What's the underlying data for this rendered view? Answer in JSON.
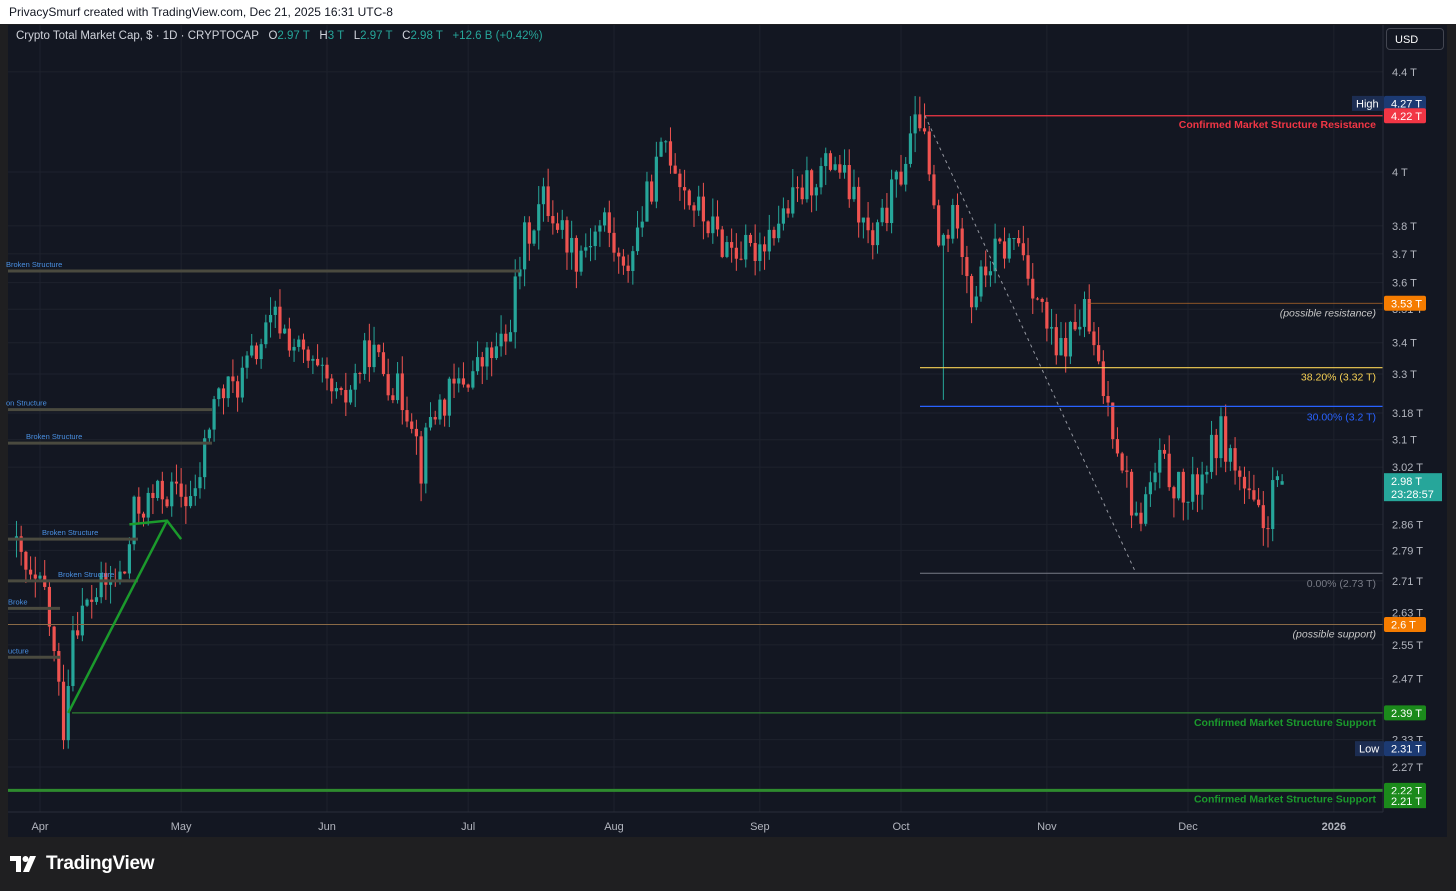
{
  "header": {
    "text": "PrivacySmurf created with TradingView.com, Dec 21, 2025 16:31 UTC-8"
  },
  "legend": {
    "symbol": "Crypto Total Market Cap, $ · 1D · CRYPTOCAP",
    "o_label": "O",
    "o_value": "2.97 T",
    "h_label": "H",
    "h_value": "3 T",
    "l_label": "L",
    "l_value": "2.97 T",
    "c_label": "C",
    "c_value": "2.98 T",
    "change": "+12.6 B (+0.42%)"
  },
  "currency_button": "USD",
  "brand": "TradingView",
  "colors": {
    "background": "#131722",
    "up": "#26a69a",
    "down": "#ef5350",
    "grid": "#1e222d",
    "resistance": "#f23645",
    "support": "#089981",
    "fib_38": "#f7d154",
    "fib_30": "#2962ff",
    "possible": "#f57c00",
    "info": "#1c3a73"
  },
  "chart_data": {
    "type": "candlestick",
    "title": "Crypto Total Market Cap, $ · 1D · CRYPTOCAP",
    "xlabel": "",
    "ylabel": "",
    "y_unit": "T (trillion USD)",
    "y_scale": "log",
    "ylim": [
      2.17,
      4.6
    ],
    "x_tick_labels": [
      "Apr",
      "May",
      "Jun",
      "Jul",
      "Aug",
      "Sep",
      "Oct",
      "Nov",
      "Dec",
      "2026"
    ],
    "y_tick_labels": [
      "4.4 T",
      "4 T",
      "3.8 T",
      "3.7 T",
      "3.6 T",
      "3.51 T",
      "3.4 T",
      "3.3 T",
      "3.18 T",
      "3.1 T",
      "3.02 T",
      "2.86 T",
      "2.79 T",
      "2.71 T",
      "2.63 T",
      "2.55 T",
      "2.47 T",
      "2.33 T",
      "2.27 T"
    ],
    "y_tick_values": [
      4.4,
      4.0,
      3.8,
      3.7,
      3.6,
      3.51,
      3.4,
      3.3,
      3.18,
      3.1,
      3.02,
      2.86,
      2.79,
      2.71,
      2.63,
      2.55,
      2.47,
      2.33,
      2.27
    ],
    "grid": true,
    "ohlc_last": {
      "open": 2.97,
      "high": 3.0,
      "low": 2.97,
      "close": 2.98,
      "change": "+12.6 B (+0.42%)"
    },
    "close_path": [
      [
        "2025-03-27",
        2.82
      ],
      [
        "2025-03-31",
        2.7
      ],
      [
        "2025-04-03",
        2.68
      ],
      [
        "2025-04-07",
        2.36
      ],
      [
        "2025-04-09",
        2.6
      ],
      [
        "2025-04-14",
        2.68
      ],
      [
        "2025-04-20",
        2.73
      ],
      [
        "2025-04-22",
        2.89
      ],
      [
        "2025-04-28",
        2.95
      ],
      [
        "2025-05-05",
        2.93
      ],
      [
        "2025-05-09",
        3.22
      ],
      [
        "2025-05-14",
        3.27
      ],
      [
        "2025-05-22",
        3.48
      ],
      [
        "2025-05-28",
        3.35
      ],
      [
        "2025-06-05",
        3.2
      ],
      [
        "2025-06-11",
        3.38
      ],
      [
        "2025-06-20",
        3.18
      ],
      [
        "2025-06-22",
        3.02
      ],
      [
        "2025-06-24",
        3.17
      ],
      [
        "2025-07-01",
        3.28
      ],
      [
        "2025-07-10",
        3.4
      ],
      [
        "2025-07-14",
        3.75
      ],
      [
        "2025-07-18",
        3.9
      ],
      [
        "2025-07-25",
        3.7
      ],
      [
        "2025-07-31",
        3.82
      ],
      [
        "2025-08-04",
        3.62
      ],
      [
        "2025-08-13",
        4.12
      ],
      [
        "2025-08-18",
        3.9
      ],
      [
        "2025-08-25",
        3.74
      ],
      [
        "2025-08-31",
        3.7
      ],
      [
        "2025-09-05",
        3.8
      ],
      [
        "2025-09-13",
        3.97
      ],
      [
        "2025-09-18",
        4.05
      ],
      [
        "2025-09-26",
        3.72
      ],
      [
        "2025-10-02",
        4.0
      ],
      [
        "2025-10-06",
        4.22
      ],
      [
        "2025-10-10",
        3.72
      ],
      [
        "2025-10-14",
        3.85
      ],
      [
        "2025-10-17",
        3.55
      ],
      [
        "2025-10-22",
        3.7
      ],
      [
        "2025-10-27",
        3.75
      ],
      [
        "2025-11-04",
        3.35
      ],
      [
        "2025-11-10",
        3.5
      ],
      [
        "2025-11-13",
        3.3
      ],
      [
        "2025-11-17",
        3.1
      ],
      [
        "2025-11-21",
        2.86
      ],
      [
        "2025-11-26",
        3.03
      ],
      [
        "2025-12-02",
        2.92
      ],
      [
        "2025-12-09",
        3.12
      ],
      [
        "2025-12-15",
        2.92
      ],
      [
        "2025-12-18",
        2.85
      ],
      [
        "2025-12-21",
        2.98
      ]
    ],
    "price_labels": {
      "high": {
        "label": "High",
        "value": "4.27 T"
      },
      "low": {
        "label": "Low",
        "value": "2.31 T"
      },
      "current": {
        "value": "2.98 T",
        "countdown": "23:28:57"
      }
    },
    "horizontal_levels": [
      {
        "name": "Confirmed Market Structure Resistance",
        "value": 4.22,
        "tag": "4.22 T"
      },
      {
        "name": "(possible resistance)",
        "value": 3.53,
        "tag": "3.53 T"
      },
      {
        "name": "38.20% (3.32 T)",
        "value": 3.32
      },
      {
        "name": "30.00% (3.2 T)",
        "value": 3.2
      },
      {
        "name": "0.00% (2.73 T)",
        "value": 2.73
      },
      {
        "name": "(possible support)",
        "value": 2.6,
        "tag": "2.6 T"
      },
      {
        "name": "Confirmed Market Structure Support",
        "value": 2.39,
        "tag": "2.39 T"
      },
      {
        "name": "Confirmed Market Structure Support",
        "value": 2.22,
        "tag": "2.22 T",
        "tag2": "2.21 T"
      }
    ],
    "annotations": [
      "Broken Structure",
      "on Structure",
      "Broken Structure",
      "Broken Structure",
      "Broken Structure",
      "Broke",
      "ucture"
    ]
  }
}
